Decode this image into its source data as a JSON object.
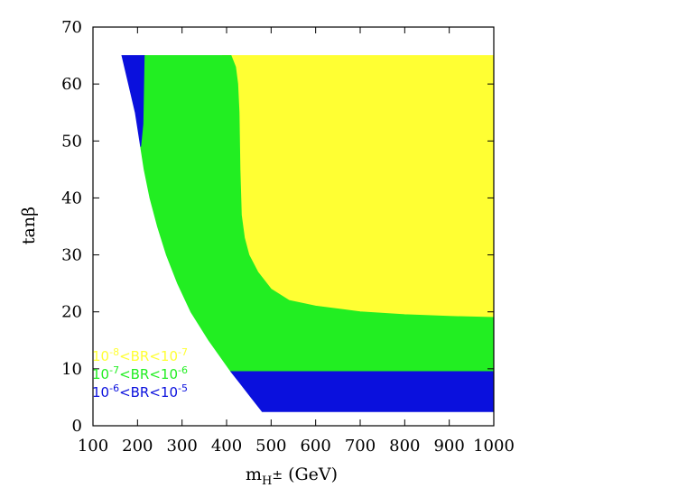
{
  "chart_data": {
    "type": "area",
    "title": "",
    "xlabel": "m_H± (GeV)",
    "xlabel_parts": {
      "base": "m",
      "sub": "H",
      "sup": "±",
      "unit": " (GeV)"
    },
    "ylabel": "tanβ",
    "xlim": [
      100,
      1000
    ],
    "ylim": [
      0,
      70
    ],
    "x_ticks": [
      100,
      200,
      300,
      400,
      500,
      600,
      700,
      800,
      900,
      1000
    ],
    "y_ticks": [
      0,
      10,
      20,
      30,
      40,
      50,
      60,
      70
    ],
    "grid": false,
    "legend_placement": "bottom-left",
    "series": [
      {
        "name": "10^-8<BR<10^-7",
        "label_parts": {
          "a": "10",
          "a_exp": "-8",
          "mid": "<BR<",
          "b": "10",
          "b_exp": "-7"
        },
        "color": "#ffff33",
        "polygon": [
          [
            390,
            65
          ],
          [
            1000,
            65
          ],
          [
            1000,
            19
          ],
          [
            900,
            19.2
          ],
          [
            800,
            19.5
          ],
          [
            700,
            20
          ],
          [
            600,
            21
          ],
          [
            540,
            22
          ],
          [
            500,
            24
          ],
          [
            470,
            27
          ],
          [
            450,
            30
          ],
          [
            440,
            33
          ],
          [
            433,
            37
          ],
          [
            430,
            45
          ],
          [
            428,
            55
          ],
          [
            425,
            60
          ],
          [
            420,
            63
          ],
          [
            410,
            65
          ]
        ]
      },
      {
        "name": "10^-7<BR<10^-6",
        "label_parts": {
          "a": "10",
          "a_exp": "-7",
          "mid": "<BR<",
          "b": "10",
          "b_exp": "-6"
        },
        "color": "#22ee22",
        "polygon": [
          [
            215,
            65
          ],
          [
            390,
            65
          ],
          [
            410,
            65
          ],
          [
            420,
            63
          ],
          [
            425,
            60
          ],
          [
            428,
            55
          ],
          [
            430,
            45
          ],
          [
            433,
            37
          ],
          [
            440,
            33
          ],
          [
            450,
            30
          ],
          [
            470,
            27
          ],
          [
            500,
            24
          ],
          [
            540,
            22
          ],
          [
            600,
            21
          ],
          [
            700,
            20
          ],
          [
            800,
            19.5
          ],
          [
            900,
            19.2
          ],
          [
            1000,
            19
          ],
          [
            1000,
            9.5
          ],
          [
            410,
            9.5
          ],
          [
            360,
            15
          ],
          [
            320,
            20
          ],
          [
            290,
            25
          ],
          [
            265,
            30
          ],
          [
            245,
            35
          ],
          [
            228,
            40
          ],
          [
            215,
            45
          ],
          [
            207,
            49
          ],
          [
            212,
            53
          ]
        ]
      },
      {
        "name": "10^-6<BR<10^-5",
        "label_parts": {
          "a": "10",
          "a_exp": "-6",
          "mid": "<BR<",
          "b": "10",
          "b_exp": "-5"
        },
        "color": "#0a10dd",
        "polygons": [
          [
            [
              165,
              65
            ],
            [
              215,
              65
            ],
            [
              212,
              53
            ],
            [
              207,
              49
            ],
            [
              195,
              55
            ],
            [
              180,
              60
            ]
          ],
          [
            [
              410,
              9.5
            ],
            [
              1000,
              9.5
            ],
            [
              1000,
              2.5
            ],
            [
              480,
              2.5
            ],
            [
              455,
              5
            ],
            [
              430,
              7.5
            ]
          ]
        ]
      }
    ]
  }
}
